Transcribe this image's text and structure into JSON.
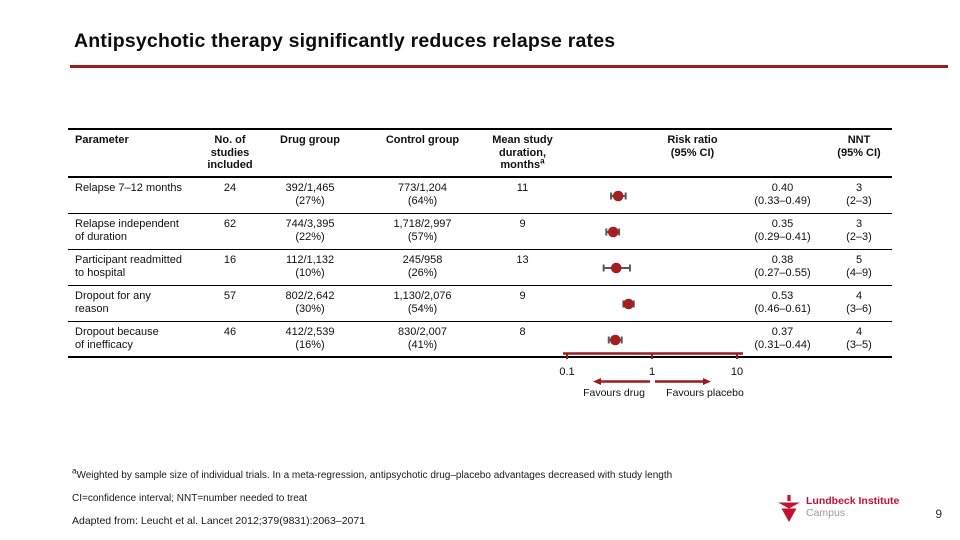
{
  "slide": {
    "title": "Antipsychotic therapy significantly reduces relapse rates",
    "page_number": "9"
  },
  "table": {
    "headers": {
      "parameter": "Parameter",
      "studies": "No. of\nstudies\nincluded",
      "drug": "Drug group",
      "control": "Control group",
      "duration": "Mean study\nduration,\nmonths",
      "risk_line1": "Risk ratio",
      "risk_line2": "(95% CI)",
      "nnt_line1": "NNT",
      "nnt_line2": "(95% CI)"
    },
    "rows": [
      {
        "parameter": "Relapse 7–12 months",
        "studies": "24",
        "drug_n": "392/1,465",
        "drug_pct": "(27%)",
        "control_n": "773/1,204",
        "control_pct": "(64%)",
        "duration": "11",
        "rr": "0.40",
        "rr_ci": "(0.33–0.49)",
        "nnt": "3",
        "nnt_ci": "(2–3)"
      },
      {
        "parameter": "Relapse independent\nof duration",
        "studies": "62",
        "drug_n": "744/3,395",
        "drug_pct": "(22%)",
        "control_n": "1,718/2,997",
        "control_pct": "(57%)",
        "duration": "9",
        "rr": "0.35",
        "rr_ci": "(0.29–0.41)",
        "nnt": "3",
        "nnt_ci": "(2–3)"
      },
      {
        "parameter": "Participant readmitted\nto hospital",
        "studies": "16",
        "drug_n": "112/1,132",
        "drug_pct": "(10%)",
        "control_n": "245/958",
        "control_pct": "(26%)",
        "duration": "13",
        "rr": "0.38",
        "rr_ci": "(0.27–0.55)",
        "nnt": "5",
        "nnt_ci": "(4–9)"
      },
      {
        "parameter": "Dropout for any\nreason",
        "studies": "57",
        "drug_n": "802/2,642",
        "drug_pct": "(30%)",
        "control_n": "1,130/2,076",
        "control_pct": "(54%)",
        "duration": "9",
        "rr": "0.53",
        "rr_ci": "(0.46–0.61)",
        "nnt": "4",
        "nnt_ci": "(3–6)"
      },
      {
        "parameter": "Dropout because\nof inefficacy",
        "studies": "46",
        "drug_n": "412/2,539",
        "drug_pct": "(16%)",
        "control_n": "830/2,007",
        "control_pct": "(41%)",
        "duration": "8",
        "rr": "0.37",
        "rr_ci": "(0.31–0.44)",
        "nnt": "4",
        "nnt_ci": "(3–5)"
      }
    ]
  },
  "chart_data": {
    "type": "scatter",
    "subtype": "forest-plot",
    "x_scale": "log10",
    "x_ticks": [
      0.1,
      1,
      10
    ],
    "points": [
      {
        "label": "Relapse 7–12 months",
        "rr": 0.4,
        "ci_low": 0.33,
        "ci_high": 0.49
      },
      {
        "label": "Relapse independent of duration",
        "rr": 0.35,
        "ci_low": 0.29,
        "ci_high": 0.41
      },
      {
        "label": "Participant readmitted to hospital",
        "rr": 0.38,
        "ci_low": 0.27,
        "ci_high": 0.55
      },
      {
        "label": "Dropout for any reason",
        "rr": 0.53,
        "ci_low": 0.46,
        "ci_high": 0.61
      },
      {
        "label": "Dropout because of inefficacy",
        "rr": 0.37,
        "ci_low": 0.31,
        "ci_high": 0.44
      }
    ],
    "favours_left": "Favours drug",
    "favours_right": "Favours placebo"
  },
  "footnotes": {
    "marker": "a",
    "weighted": "Weighted by sample size of individual trials. In a meta-regression, antipsychotic drug–placebo advantages decreased with study length",
    "abbrev": "CI=confidence interval; NNT=number needed to treat",
    "source": "Adapted from: Leucht et al. Lancet 2012;379(9831):2063–2071"
  },
  "logo": {
    "line1": "Lundbeck Institute",
    "line2": "Campus"
  },
  "colors": {
    "accent": "#9c1b1e",
    "marker": "#a51e22",
    "whisker": "#595959",
    "axis_text": "#111111",
    "logo_red": "#c8102e",
    "campus_gray": "#9a9a9a"
  }
}
